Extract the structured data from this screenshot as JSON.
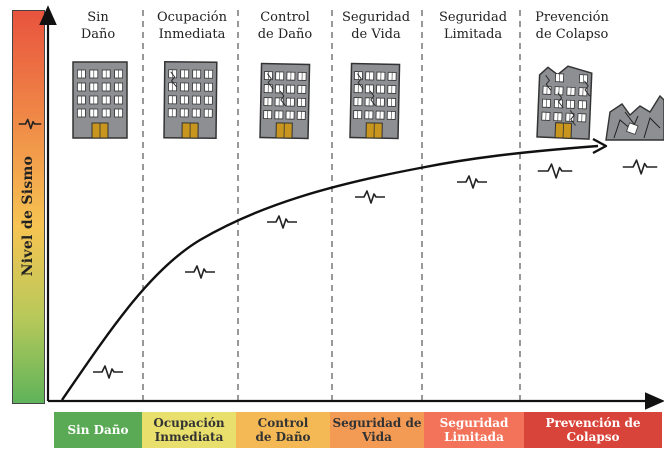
{
  "y_axis_label": "Nivel de Sismo",
  "columns": [
    {
      "title": "Sin\nDaño"
    },
    {
      "title": "Ocupación\nInmediata"
    },
    {
      "title": "Control\nde Daño"
    },
    {
      "title": "Seguridad\nde Vida"
    },
    {
      "title": "Seguridad\nLimitada"
    },
    {
      "title": "Prevención\nde Colapso"
    }
  ],
  "levels": [
    {
      "label": "Sin Daño",
      "color": "#5aaa55",
      "text_color": "#ffffff"
    },
    {
      "label": "Ocupación\nInmediata",
      "color": "#e8df6c",
      "text_color": "#333333"
    },
    {
      "label": "Control\nde Daño",
      "color": "#f4b954",
      "text_color": "#333333"
    },
    {
      "label": "Seguridad de\nVida",
      "color": "#f39a55",
      "text_color": "#333333"
    },
    {
      "label": "Seguridad\nLimitada",
      "color": "#f2725a",
      "text_color": "#ffffff"
    },
    {
      "label": "Prevención de\nColapso",
      "color": "#d9443a",
      "text_color": "#ffffff"
    }
  ],
  "colors": {
    "axis": "#111111",
    "divider": "#555555",
    "building": "#8d8f93",
    "window": "#ffffff",
    "door": "#c8961e"
  }
}
